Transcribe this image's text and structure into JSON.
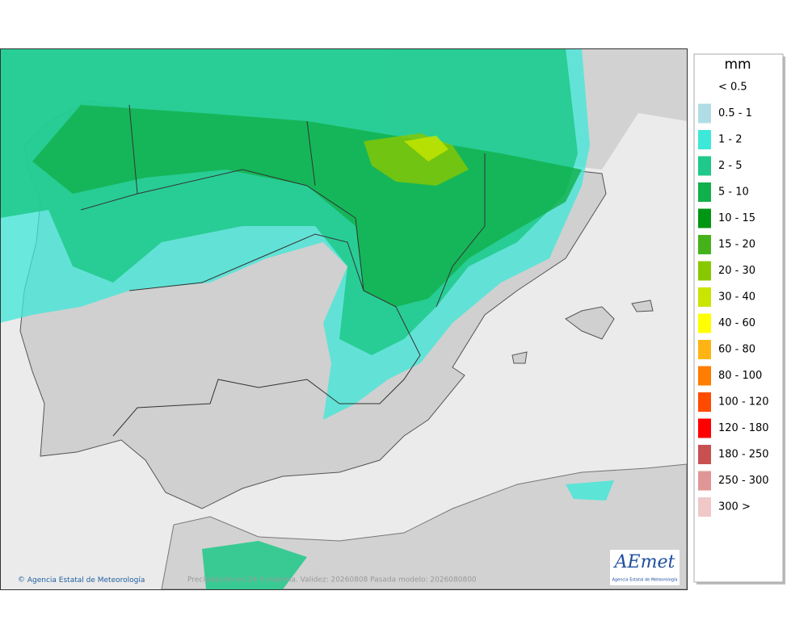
{
  "map": {
    "caption": "Precipitación en 24 h máxima. Validez: 20260808 Pasada modelo: 2026080800",
    "credit": "Agencia Estatal de Meteorología",
    "logo": {
      "name": "AEmet",
      "subtitle": "Agencia Estatal de Meteorología"
    }
  },
  "legend": {
    "unit": "mm",
    "items": [
      {
        "label": "< 0.5",
        "color": "#ffffff"
      },
      {
        "label": "0.5 - 1",
        "color": "#b0dde3"
      },
      {
        "label": "1 - 2",
        "color": "#3ee8d8"
      },
      {
        "label": "2 - 5",
        "color": "#1ec98a"
      },
      {
        "label": "5 - 10",
        "color": "#10b04a"
      },
      {
        "label": "10 - 15",
        "color": "#009614"
      },
      {
        "label": "15 - 20",
        "color": "#46b21a"
      },
      {
        "label": "20 - 30",
        "color": "#88c800"
      },
      {
        "label": "30 - 40",
        "color": "#c8e600"
      },
      {
        "label": "40 - 60",
        "color": "#ffff00"
      },
      {
        "label": "60 - 80",
        "color": "#ffb414"
      },
      {
        "label": "80 - 100",
        "color": "#ff7d00"
      },
      {
        "label": "100 - 120",
        "color": "#ff4b00"
      },
      {
        "label": "120 - 180",
        "color": "#ff0000"
      },
      {
        "label": "180 - 250",
        "color": "#c85050"
      },
      {
        "label": "250 - 300",
        "color": "#e09696"
      },
      {
        "label": "300 >",
        "color": "#f0c8c8"
      }
    ]
  }
}
